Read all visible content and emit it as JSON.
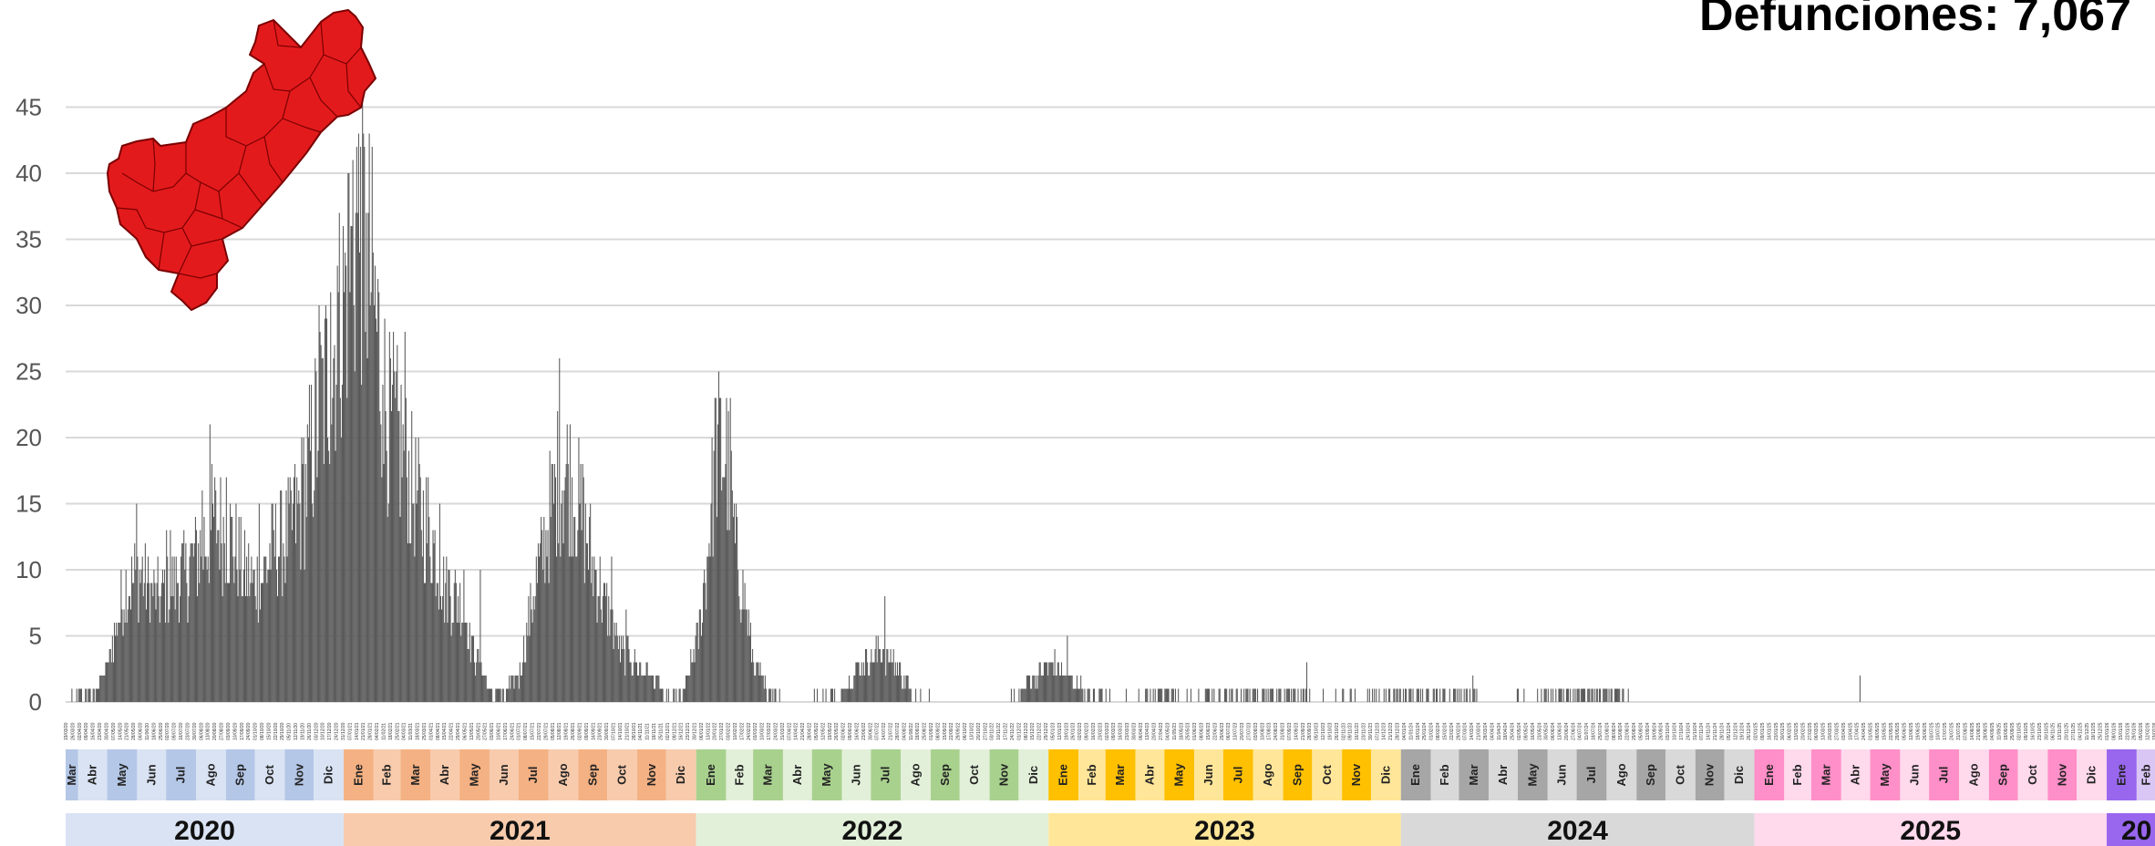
{
  "title": "Defunciones: 7,067",
  "colors": {
    "bar": "#595959",
    "grid": "#d9d9d9",
    "map": "#e31a1c",
    "years": {
      "2020": {
        "light": "#dae3f3",
        "dark": "#b4c7e7"
      },
      "2021": {
        "light": "#f8cbad",
        "dark": "#f4b183"
      },
      "2022": {
        "light": "#e2f0d9",
        "dark": "#a9d18e"
      },
      "2023": {
        "light": "#ffe699",
        "dark": "#ffc000"
      },
      "2024": {
        "light": "#d9d9d9",
        "dark": "#a6a6a6"
      },
      "2025": {
        "light": "#ffd9ec",
        "dark": "#ff8fc8"
      },
      "2026": {
        "light": "#d9c6f5",
        "dark": "#9966ee"
      }
    }
  },
  "chart_data": {
    "type": "bar",
    "xlabel": "",
    "ylabel": "",
    "ylim": [
      0,
      45
    ],
    "yticks": [
      0,
      5,
      10,
      15,
      20,
      25,
      30,
      35,
      40,
      45
    ],
    "grid": true,
    "legend": "none",
    "x_start": "2020-03-19",
    "x_end": "2026-02-20",
    "daily_profile": [
      [
        "2020-03-19",
        0
      ],
      [
        "2020-04-01",
        1
      ],
      [
        "2020-04-20",
        1
      ],
      [
        "2020-05-01",
        3
      ],
      [
        "2020-05-20",
        9
      ],
      [
        "2020-06-05",
        10
      ],
      [
        "2020-06-20",
        8
      ],
      [
        "2020-07-05",
        9
      ],
      [
        "2020-07-20",
        10
      ],
      [
        "2020-08-05",
        12
      ],
      [
        "2020-08-20",
        14
      ],
      [
        "2020-09-05",
        13
      ],
      [
        "2020-09-20",
        10
      ],
      [
        "2020-10-05",
        9
      ],
      [
        "2020-10-20",
        12
      ],
      [
        "2020-11-05",
        13
      ],
      [
        "2020-11-20",
        16
      ],
      [
        "2020-12-05",
        22
      ],
      [
        "2020-12-20",
        27
      ],
      [
        "2021-01-05",
        33
      ],
      [
        "2021-01-18",
        38
      ],
      [
        "2021-02-01",
        31
      ],
      [
        "2021-02-15",
        22
      ],
      [
        "2021-03-01",
        20
      ],
      [
        "2021-03-15",
        16
      ],
      [
        "2021-04-01",
        13
      ],
      [
        "2021-04-15",
        9
      ],
      [
        "2021-05-01",
        8
      ],
      [
        "2021-05-15",
        4
      ],
      [
        "2021-06-01",
        1
      ],
      [
        "2021-06-15",
        1
      ],
      [
        "2021-07-01",
        2
      ],
      [
        "2021-07-15",
        8
      ],
      [
        "2021-08-01",
        14
      ],
      [
        "2021-08-10",
        17
      ],
      [
        "2021-08-20",
        18
      ],
      [
        "2021-09-01",
        15
      ],
      [
        "2021-09-15",
        11
      ],
      [
        "2021-10-01",
        7
      ],
      [
        "2021-10-15",
        4
      ],
      [
        "2021-11-01",
        3
      ],
      [
        "2021-11-15",
        2
      ],
      [
        "2021-12-01",
        1
      ],
      [
        "2021-12-20",
        1
      ],
      [
        "2022-01-05",
        6
      ],
      [
        "2022-01-15",
        14
      ],
      [
        "2022-01-22",
        20
      ],
      [
        "2022-02-01",
        19
      ],
      [
        "2022-02-10",
        12
      ],
      [
        "2022-02-20",
        8
      ],
      [
        "2022-03-01",
        3
      ],
      [
        "2022-03-15",
        1
      ],
      [
        "2022-04-01",
        0
      ],
      [
        "2022-05-01",
        0
      ],
      [
        "2022-06-01",
        1
      ],
      [
        "2022-06-20",
        3
      ],
      [
        "2022-07-10",
        4
      ],
      [
        "2022-07-25",
        3
      ],
      [
        "2022-08-10",
        1
      ],
      [
        "2022-09-01",
        0
      ],
      [
        "2022-11-20",
        0
      ],
      [
        "2022-12-15",
        2
      ],
      [
        "2023-01-05",
        3
      ],
      [
        "2023-01-20",
        2
      ],
      [
        "2023-02-10",
        1
      ],
      [
        "2023-03-10",
        0
      ],
      [
        "2023-05-01",
        1
      ],
      [
        "2023-06-01",
        0
      ],
      [
        "2023-08-01",
        1
      ],
      [
        "2023-09-01",
        1
      ],
      [
        "2023-10-01",
        0
      ],
      [
        "2024-02-01",
        1
      ],
      [
        "2024-03-01",
        1
      ],
      [
        "2024-04-01",
        0
      ],
      [
        "2024-08-01",
        1
      ],
      [
        "2024-09-01",
        0
      ],
      [
        "2026-02-20",
        0
      ]
    ],
    "peaks": [
      [
        "2020-05-31",
        15
      ],
      [
        "2020-07-01",
        13
      ],
      [
        "2020-07-05",
        13
      ],
      [
        "2020-08-07",
        16
      ],
      [
        "2020-08-15",
        21
      ],
      [
        "2020-09-01",
        17
      ],
      [
        "2020-10-05",
        15
      ],
      [
        "2020-11-10",
        17
      ],
      [
        "2020-11-20",
        20
      ],
      [
        "2020-12-06",
        30
      ],
      [
        "2020-12-18",
        31
      ],
      [
        "2020-12-25",
        33
      ],
      [
        "2021-01-05",
        40
      ],
      [
        "2021-01-10",
        41
      ],
      [
        "2021-01-14",
        42
      ],
      [
        "2021-01-18",
        42
      ],
      [
        "2021-01-24",
        37
      ],
      [
        "2021-02-10",
        24
      ],
      [
        "2021-02-20",
        24
      ],
      [
        "2021-03-05",
        28
      ],
      [
        "2021-04-10",
        15
      ],
      [
        "2021-05-05",
        10
      ],
      [
        "2021-05-22",
        10
      ],
      [
        "2021-08-12",
        26
      ],
      [
        "2021-09-05",
        18
      ],
      [
        "2021-10-05",
        11
      ],
      [
        "2021-10-20",
        7
      ],
      [
        "2022-01-20",
        23
      ],
      [
        "2022-02-05",
        23
      ],
      [
        "2022-07-15",
        8
      ],
      [
        "2023-01-20",
        5
      ],
      [
        "2023-09-25",
        3
      ],
      [
        "2024-03-15",
        2
      ],
      [
        "2025-04-20",
        2
      ]
    ],
    "month_abbr": [
      "Ene",
      "Feb",
      "Mar",
      "Abr",
      "May",
      "Jun",
      "Jul",
      "Ago",
      "Sep",
      "Oct",
      "Nov",
      "Dic"
    ],
    "year_labels": [
      "2020",
      "2021",
      "2022",
      "2023",
      "2024",
      "2025",
      "20"
    ]
  },
  "map": {
    "name": "Querétaro state silhouette"
  }
}
